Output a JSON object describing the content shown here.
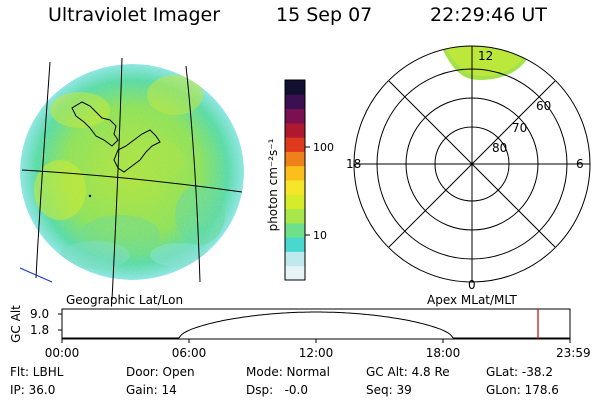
{
  "header": {
    "instrument": "Ultraviolet Imager",
    "date": "15 Sep 07",
    "time": "22:29:46 UT"
  },
  "geo_panel": {
    "label": "Geographic Lat/Lon"
  },
  "apex_panel": {
    "label": "Apex MLat/MLT",
    "mlt_labels": {
      "top": "12",
      "left": "18",
      "right": "6",
      "bottom": "0"
    },
    "lat_labels": [
      "60",
      "70",
      "80"
    ]
  },
  "colorbar": {
    "unit_label": "photon cm⁻²s⁻¹",
    "ticks": [
      "100",
      "10"
    ],
    "colors": [
      "#e6f4f8",
      "#bfe9ee",
      "#48d8d0",
      "#6fe08a",
      "#a8e64a",
      "#d6ec2a",
      "#f6e62a",
      "#fbbf1c",
      "#f0801a",
      "#e03a1c",
      "#b01830",
      "#7a1050",
      "#3a1050",
      "#101030"
    ]
  },
  "orbit_plot": {
    "ylabel": "GC Alt",
    "ymax": "9.0",
    "ymin": "1.8",
    "xticks": [
      "00:00",
      "06:00",
      "12:00",
      "18:00",
      "23:59"
    ],
    "current_time_fraction": 0.937,
    "line_color": "#000000",
    "marker_color": "#cc0000"
  },
  "info": {
    "filter": "Flt: LBHL",
    "ip": "IP: 36.0",
    "door": "Door: Open",
    "gain": "Gain: 14",
    "mode": "Mode: Normal",
    "dsp": "Dsp:   -0.0",
    "gc_alt": "GC Alt: 4.8 Re",
    "seq": "Seq: 39",
    "glat": "GLat: -38.2",
    "glon": "GLon: 178.6"
  }
}
